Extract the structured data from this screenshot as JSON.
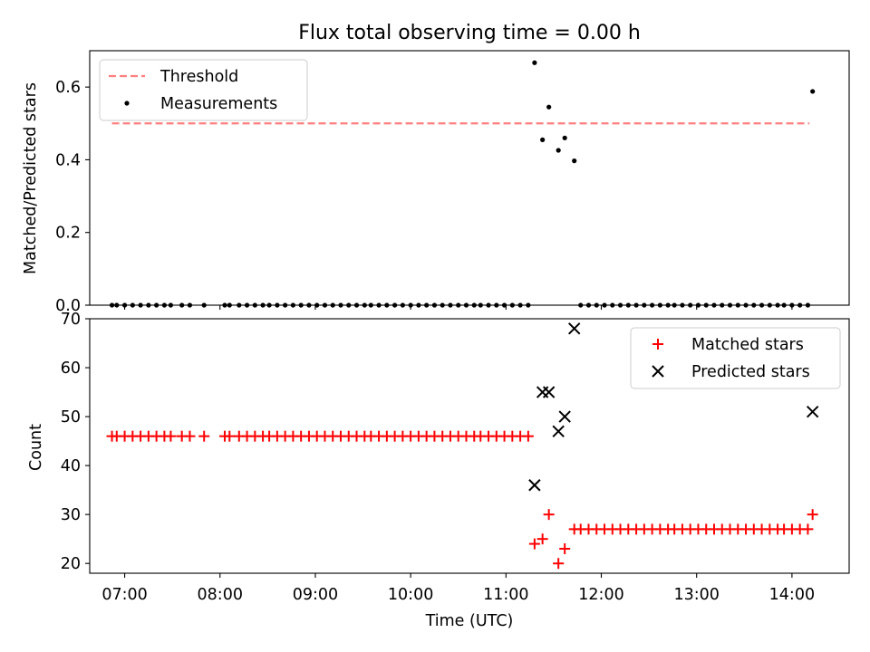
{
  "chart_data": [
    {
      "type": "scatter",
      "title": "Flux total observing time = 0.00 h",
      "xlabel": "",
      "ylabel": "Matched/Predicted stars",
      "ylim": [
        0.0,
        0.7
      ],
      "yticks": [
        "0.0",
        "0.2",
        "0.4",
        "0.6"
      ],
      "xlim": [
        "06:38",
        "14:36"
      ],
      "x_tick_positions": [
        "07:00",
        "08:00",
        "09:00",
        "10:00",
        "11:00",
        "12:00",
        "13:00",
        "14:00"
      ],
      "legend": {
        "placement": "upper left",
        "entries": [
          "Threshold",
          "Measurements"
        ]
      },
      "threshold": {
        "name": "Threshold",
        "value": 0.5,
        "x_start": "06:52",
        "x_end": "14:11",
        "color": "#ff7f7f",
        "style": "dashed"
      },
      "measurements": {
        "name": "Measurements",
        "color": "#000000",
        "points": [
          [
            "06:52",
            0.0
          ],
          [
            "06:55",
            0.0
          ],
          [
            "07:00",
            0.0
          ],
          [
            "07:05",
            0.0
          ],
          [
            "07:10",
            0.0
          ],
          [
            "07:15",
            0.0
          ],
          [
            "07:20",
            0.0
          ],
          [
            "07:25",
            0.0
          ],
          [
            "07:29",
            0.0
          ],
          [
            "07:36",
            0.0
          ],
          [
            "07:41",
            0.0
          ],
          [
            "07:50",
            0.0
          ],
          [
            "08:03",
            0.0
          ],
          [
            "08:06",
            0.0
          ],
          [
            "08:12",
            0.0
          ],
          [
            "08:17",
            0.0
          ],
          [
            "08:22",
            0.0
          ],
          [
            "08:27",
            0.0
          ],
          [
            "08:31",
            0.0
          ],
          [
            "08:36",
            0.0
          ],
          [
            "08:41",
            0.0
          ],
          [
            "08:46",
            0.0
          ],
          [
            "08:51",
            0.0
          ],
          [
            "08:56",
            0.0
          ],
          [
            "09:01",
            0.0
          ],
          [
            "09:06",
            0.0
          ],
          [
            "09:11",
            0.0
          ],
          [
            "09:16",
            0.0
          ],
          [
            "09:21",
            0.0
          ],
          [
            "09:26",
            0.0
          ],
          [
            "09:31",
            0.0
          ],
          [
            "09:35",
            0.0
          ],
          [
            "09:40",
            0.0
          ],
          [
            "09:45",
            0.0
          ],
          [
            "09:50",
            0.0
          ],
          [
            "09:55",
            0.0
          ],
          [
            "10:00",
            0.0
          ],
          [
            "10:05",
            0.0
          ],
          [
            "10:10",
            0.0
          ],
          [
            "10:15",
            0.0
          ],
          [
            "10:20",
            0.0
          ],
          [
            "10:25",
            0.0
          ],
          [
            "10:30",
            0.0
          ],
          [
            "10:35",
            0.0
          ],
          [
            "10:40",
            0.0
          ],
          [
            "10:44",
            0.0
          ],
          [
            "10:49",
            0.0
          ],
          [
            "10:54",
            0.0
          ],
          [
            "10:59",
            0.0
          ],
          [
            "11:04",
            0.0
          ],
          [
            "11:09",
            0.0
          ],
          [
            "11:14",
            0.0
          ],
          [
            "11:18",
            0.667
          ],
          [
            "11:23",
            0.455
          ],
          [
            "11:27",
            0.545
          ],
          [
            "11:33",
            0.426
          ],
          [
            "11:37",
            0.46
          ],
          [
            "11:43",
            0.397
          ],
          [
            "11:47",
            0.0
          ],
          [
            "11:52",
            0.0
          ],
          [
            "11:57",
            0.0
          ],
          [
            "12:02",
            0.0
          ],
          [
            "12:07",
            0.0
          ],
          [
            "12:12",
            0.0
          ],
          [
            "12:17",
            0.0
          ],
          [
            "12:22",
            0.0
          ],
          [
            "12:27",
            0.0
          ],
          [
            "12:32",
            0.0
          ],
          [
            "12:37",
            0.0
          ],
          [
            "12:42",
            0.0
          ],
          [
            "12:46",
            0.0
          ],
          [
            "12:51",
            0.0
          ],
          [
            "12:56",
            0.0
          ],
          [
            "13:01",
            0.0
          ],
          [
            "13:06",
            0.0
          ],
          [
            "13:11",
            0.0
          ],
          [
            "13:16",
            0.0
          ],
          [
            "13:21",
            0.0
          ],
          [
            "13:26",
            0.0
          ],
          [
            "13:31",
            0.0
          ],
          [
            "13:36",
            0.0
          ],
          [
            "13:41",
            0.0
          ],
          [
            "13:46",
            0.0
          ],
          [
            "13:51",
            0.0
          ],
          [
            "13:55",
            0.0
          ],
          [
            "14:00",
            0.0
          ],
          [
            "14:05",
            0.0
          ],
          [
            "14:10",
            0.0
          ],
          [
            "14:13",
            0.588
          ]
        ]
      }
    },
    {
      "type": "scatter",
      "title": "",
      "xlabel": "Time (UTC)",
      "ylabel": "Count",
      "ylim": [
        18,
        70
      ],
      "yticks": [
        "20",
        "30",
        "40",
        "50",
        "60",
        "70"
      ],
      "xlim": [
        "06:38",
        "14:36"
      ],
      "xticks": [
        "07:00",
        "08:00",
        "09:00",
        "10:00",
        "11:00",
        "12:00",
        "13:00",
        "14:00"
      ],
      "legend": {
        "placement": "upper right",
        "entries": [
          "Matched stars",
          "Predicted stars"
        ]
      },
      "series": [
        {
          "name": "Matched stars",
          "marker": "+",
          "color": "#ff0000",
          "points": [
            [
              "06:52",
              46
            ],
            [
              "06:55",
              46
            ],
            [
              "07:00",
              46
            ],
            [
              "07:05",
              46
            ],
            [
              "07:10",
              46
            ],
            [
              "07:15",
              46
            ],
            [
              "07:20",
              46
            ],
            [
              "07:25",
              46
            ],
            [
              "07:29",
              46
            ],
            [
              "07:36",
              46
            ],
            [
              "07:41",
              46
            ],
            [
              "07:50",
              46
            ],
            [
              "08:03",
              46
            ],
            [
              "08:06",
              46
            ],
            [
              "08:12",
              46
            ],
            [
              "08:17",
              46
            ],
            [
              "08:22",
              46
            ],
            [
              "08:27",
              46
            ],
            [
              "08:31",
              46
            ],
            [
              "08:36",
              46
            ],
            [
              "08:41",
              46
            ],
            [
              "08:46",
              46
            ],
            [
              "08:51",
              46
            ],
            [
              "08:56",
              46
            ],
            [
              "09:01",
              46
            ],
            [
              "09:06",
              46
            ],
            [
              "09:11",
              46
            ],
            [
              "09:16",
              46
            ],
            [
              "09:21",
              46
            ],
            [
              "09:26",
              46
            ],
            [
              "09:31",
              46
            ],
            [
              "09:35",
              46
            ],
            [
              "09:40",
              46
            ],
            [
              "09:45",
              46
            ],
            [
              "09:50",
              46
            ],
            [
              "09:55",
              46
            ],
            [
              "10:00",
              46
            ],
            [
              "10:05",
              46
            ],
            [
              "10:10",
              46
            ],
            [
              "10:15",
              46
            ],
            [
              "10:20",
              46
            ],
            [
              "10:25",
              46
            ],
            [
              "10:30",
              46
            ],
            [
              "10:35",
              46
            ],
            [
              "10:40",
              46
            ],
            [
              "10:44",
              46
            ],
            [
              "10:49",
              46
            ],
            [
              "10:54",
              46
            ],
            [
              "10:59",
              46
            ],
            [
              "11:04",
              46
            ],
            [
              "11:09",
              46
            ],
            [
              "11:14",
              46
            ],
            [
              "11:18",
              24
            ],
            [
              "11:23",
              25
            ],
            [
              "11:27",
              30
            ],
            [
              "11:33",
              20
            ],
            [
              "11:37",
              23
            ],
            [
              "11:43",
              27
            ],
            [
              "11:47",
              27
            ],
            [
              "11:52",
              27
            ],
            [
              "11:57",
              27
            ],
            [
              "12:02",
              27
            ],
            [
              "12:07",
              27
            ],
            [
              "12:12",
              27
            ],
            [
              "12:17",
              27
            ],
            [
              "12:22",
              27
            ],
            [
              "12:27",
              27
            ],
            [
              "12:32",
              27
            ],
            [
              "12:37",
              27
            ],
            [
              "12:42",
              27
            ],
            [
              "12:46",
              27
            ],
            [
              "12:51",
              27
            ],
            [
              "12:56",
              27
            ],
            [
              "13:01",
              27
            ],
            [
              "13:06",
              27
            ],
            [
              "13:11",
              27
            ],
            [
              "13:16",
              27
            ],
            [
              "13:21",
              27
            ],
            [
              "13:26",
              27
            ],
            [
              "13:31",
              27
            ],
            [
              "13:36",
              27
            ],
            [
              "13:41",
              27
            ],
            [
              "13:46",
              27
            ],
            [
              "13:51",
              27
            ],
            [
              "13:55",
              27
            ],
            [
              "14:00",
              27
            ],
            [
              "14:05",
              27
            ],
            [
              "14:10",
              27
            ],
            [
              "14:13",
              30
            ]
          ]
        },
        {
          "name": "Predicted stars",
          "marker": "x",
          "color": "#000000",
          "points": [
            [
              "11:18",
              36
            ],
            [
              "11:23",
              55
            ],
            [
              "11:27",
              55
            ],
            [
              "11:33",
              47
            ],
            [
              "11:37",
              50
            ],
            [
              "11:43",
              68
            ],
            [
              "14:13",
              51
            ]
          ]
        }
      ]
    }
  ]
}
